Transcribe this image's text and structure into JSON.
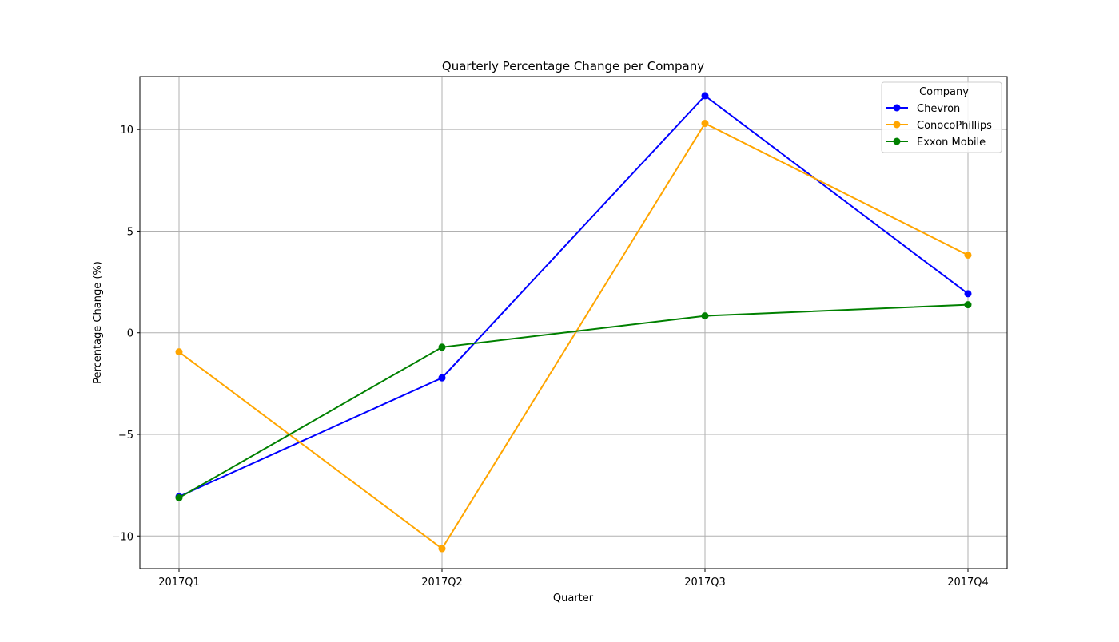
{
  "chart_data": {
    "type": "line",
    "title": "Quarterly Percentage Change per Company",
    "xlabel": "Quarter",
    "ylabel": "Percentage Change (%)",
    "categories": [
      "2017Q1",
      "2017Q2",
      "2017Q3",
      "2017Q4"
    ],
    "ylim": [
      -11.6,
      12.6
    ],
    "yticks": [
      {
        "value": -10,
        "label": "−10"
      },
      {
        "value": -5,
        "label": "−5"
      },
      {
        "value": 0,
        "label": "0"
      },
      {
        "value": 5,
        "label": "5"
      },
      {
        "value": 10,
        "label": "10"
      }
    ],
    "grid": true,
    "legend": {
      "title": "Company",
      "position": "top-right"
    },
    "series": [
      {
        "name": "Chevron",
        "color": "#0000ff",
        "values": [
          -8.06,
          -2.22,
          11.66,
          1.92
        ]
      },
      {
        "name": "ConocoPhillips",
        "color": "#ffa500",
        "values": [
          -0.94,
          -10.62,
          10.3,
          3.82
        ]
      },
      {
        "name": "Exxon Mobile",
        "color": "#008000",
        "values": [
          -8.12,
          -0.71,
          0.83,
          1.38
        ]
      }
    ]
  }
}
